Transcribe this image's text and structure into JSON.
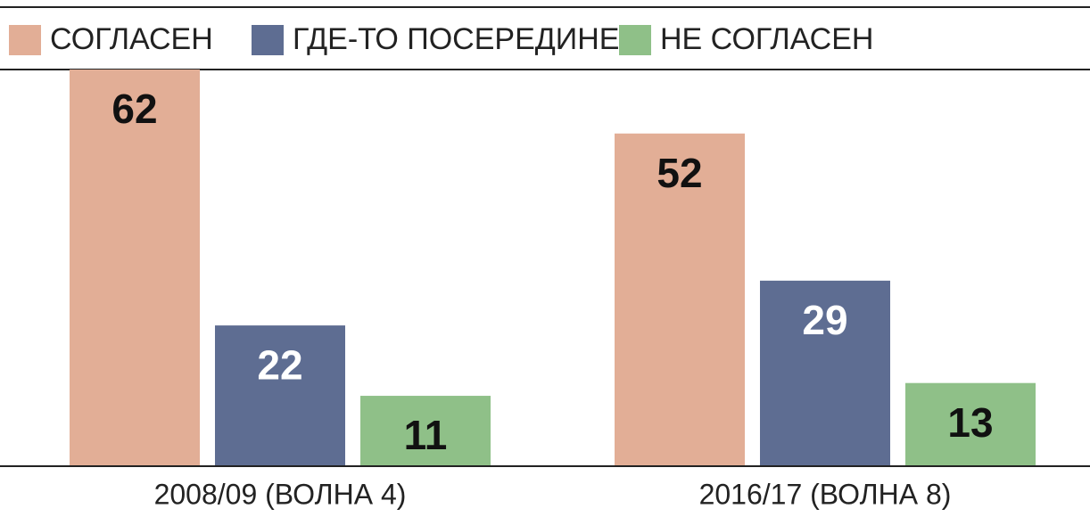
{
  "chart_data": {
    "type": "bar",
    "categories": [
      "2008/09 (ВОЛНА 4)",
      "2016/17 (ВОЛНА 8)"
    ],
    "series": [
      {
        "name": "СОГЛАСЕН",
        "color": "#e2ae96",
        "label_color": "#111111",
        "values": [
          62,
          52
        ]
      },
      {
        "name": "ГДЕ-ТО ПОСЕРЕДИНЕ",
        "color": "#5e6d92",
        "label_color": "#ffffff",
        "values": [
          22,
          29
        ]
      },
      {
        "name": "НЕ СОГЛАСЕН",
        "color": "#8fc088",
        "label_color": "#111111",
        "values": [
          11,
          13
        ]
      }
    ],
    "ylim": [
      0,
      62
    ]
  }
}
